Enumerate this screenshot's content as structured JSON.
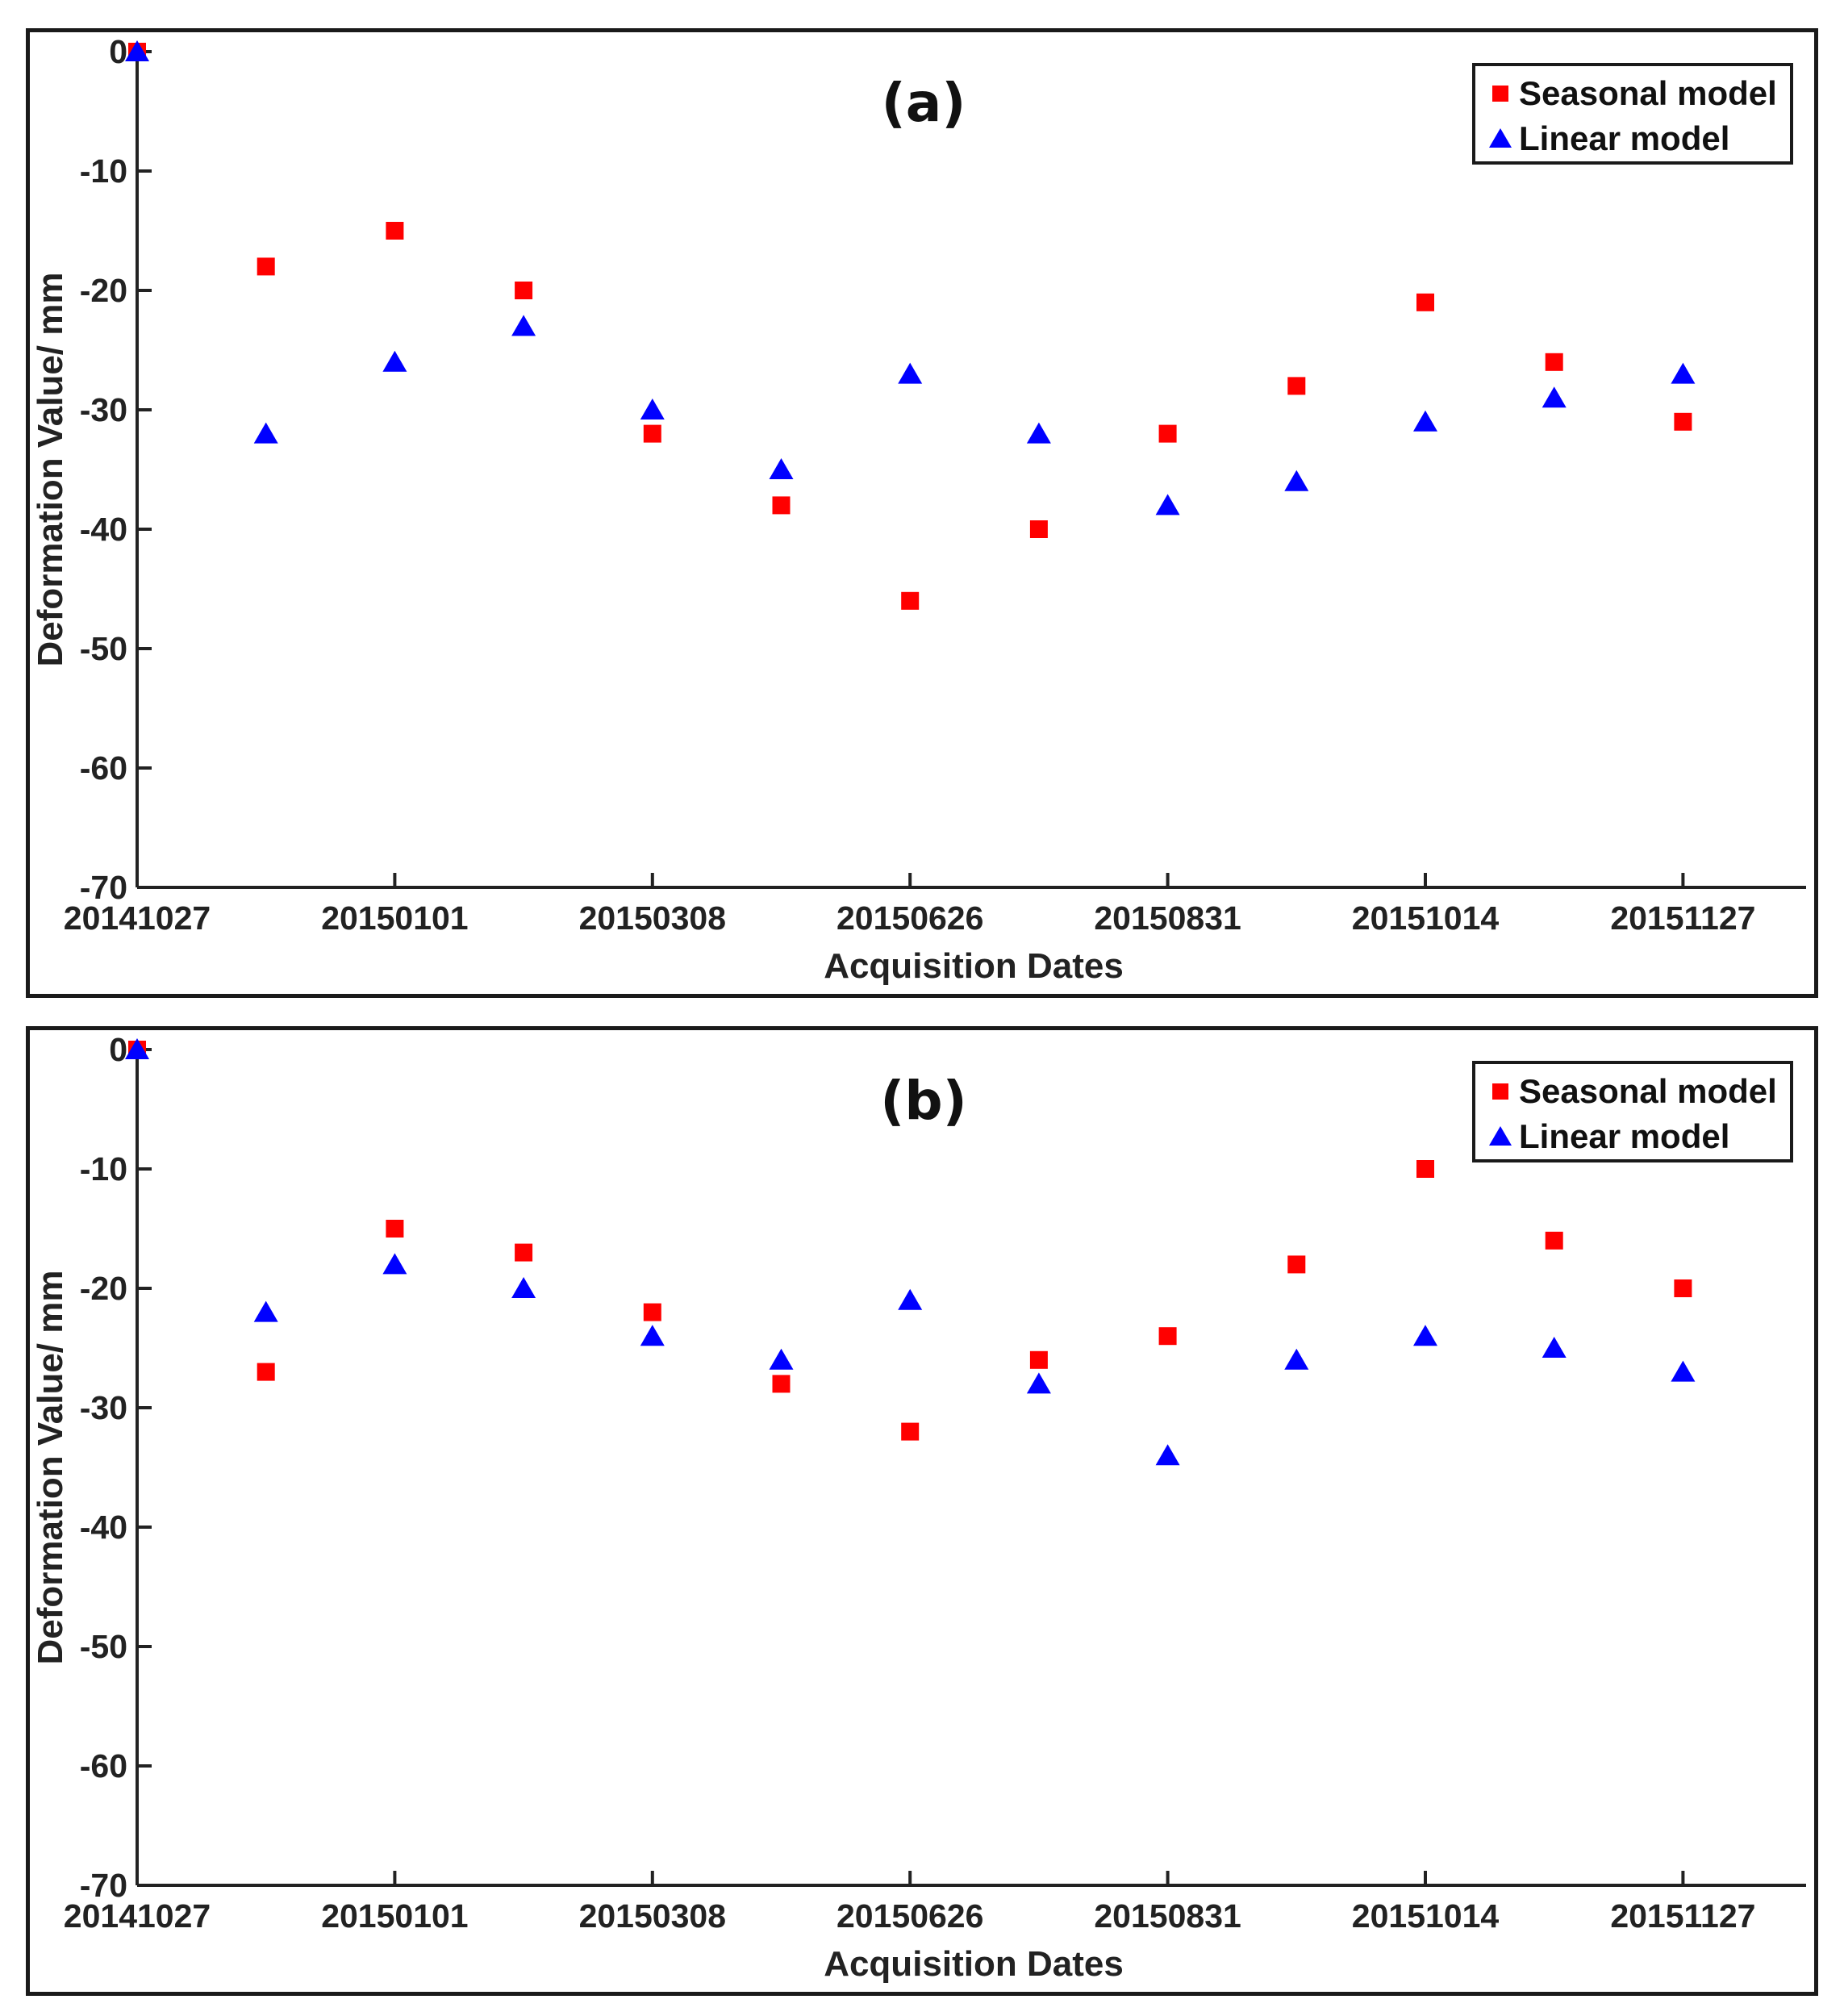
{
  "chart_data": [
    {
      "id": "a",
      "type": "scatter",
      "title": "(a)",
      "xlabel": "Acquisition Dates",
      "ylabel": "Deformation Value/ mm",
      "ylim": [
        -70,
        0
      ],
      "yticks": [
        "0",
        "-10",
        "-20",
        "-30",
        "-40",
        "-50",
        "-60",
        "-70"
      ],
      "ytick_values": [
        0,
        -10,
        -20,
        -30,
        -40,
        -50,
        -60,
        -70
      ],
      "xtick_labels": [
        "20141027",
        "20150101",
        "20150308",
        "20150626",
        "20150831",
        "20151014",
        "20151127"
      ],
      "xtick_index": [
        0,
        2,
        4,
        6,
        8,
        10,
        12
      ],
      "n_points": 13,
      "legend": {
        "position": "top-right"
      },
      "series": [
        {
          "name": "Seasonal model",
          "marker": "square",
          "color": "#ff0000",
          "values": [
            0,
            -18,
            -15,
            -20,
            -32,
            -38,
            -46,
            -40,
            -32,
            -28,
            -21,
            -26,
            -31
          ]
        },
        {
          "name": "Linear model",
          "marker": "triangle",
          "color": "#0000ff",
          "values": [
            0,
            -32,
            -26,
            -23,
            -30,
            -35,
            -27,
            -32,
            -38,
            -36,
            -31,
            -29,
            -27
          ]
        }
      ]
    },
    {
      "id": "b",
      "type": "scatter",
      "title": "(b)",
      "xlabel": "Acquisition Dates",
      "ylabel": "Deformation Value/ mm",
      "ylim": [
        -70,
        0
      ],
      "yticks": [
        "0",
        "-10",
        "-20",
        "-30",
        "-40",
        "-50",
        "-60",
        "-70"
      ],
      "ytick_values": [
        0,
        -10,
        -20,
        -30,
        -40,
        -50,
        -60,
        -70
      ],
      "xtick_labels": [
        "20141027",
        "20150101",
        "20150308",
        "20150626",
        "20150831",
        "20151014",
        "20151127"
      ],
      "xtick_index": [
        0,
        2,
        4,
        6,
        8,
        10,
        12
      ],
      "n_points": 13,
      "legend": {
        "position": "top-right"
      },
      "series": [
        {
          "name": "Seasonal model",
          "marker": "square",
          "color": "#ff0000",
          "values": [
            0,
            -27,
            -15,
            -17,
            -22,
            -28,
            -32,
            -26,
            -24,
            -18,
            -10,
            -16,
            -20
          ]
        },
        {
          "name": "Linear model",
          "marker": "triangle",
          "color": "#0000ff",
          "values": [
            0,
            -22,
            -18,
            -20,
            -24,
            -26,
            -21,
            -28,
            -34,
            -26,
            -24,
            -25,
            -27
          ]
        }
      ]
    }
  ]
}
